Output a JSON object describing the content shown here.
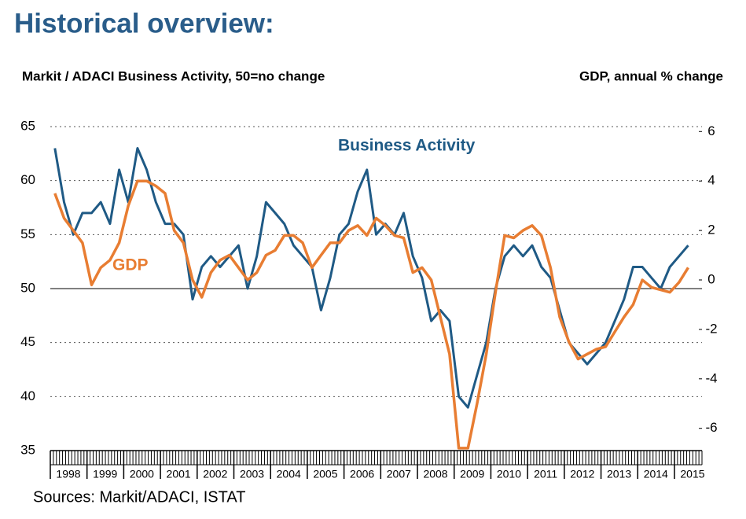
{
  "chart_data": {
    "type": "line",
    "title": "Historical overview:",
    "y_label": "Markit / ADACI  Business Activity, 50=no change",
    "y2_label": "GDP, annual % change",
    "source": "Sources: Markit/ADACI, ISTAT",
    "x": [
      1998.125,
      1998.375,
      1998.625,
      1998.875,
      1999.125,
      1999.375,
      1999.625,
      1999.875,
      2000.125,
      2000.375,
      2000.625,
      2000.875,
      2001.125,
      2001.375,
      2001.625,
      2001.875,
      2002.125,
      2002.375,
      2002.625,
      2002.875,
      2003.125,
      2003.375,
      2003.625,
      2003.875,
      2004.125,
      2004.375,
      2004.625,
      2004.875,
      2005.125,
      2005.375,
      2005.625,
      2005.875,
      2006.125,
      2006.375,
      2006.625,
      2006.875,
      2007.125,
      2007.375,
      2007.625,
      2007.875,
      2008.125,
      2008.375,
      2008.625,
      2008.875,
      2009.125,
      2009.375,
      2009.625,
      2009.875,
      2010.125,
      2010.375,
      2010.625,
      2010.875,
      2011.125,
      2011.375,
      2011.625,
      2011.875,
      2012.125,
      2012.375,
      2012.625,
      2012.875,
      2013.125,
      2013.375,
      2013.625,
      2013.875,
      2014.125,
      2014.375,
      2014.625,
      2014.875,
      2015.125,
      2015.375
    ],
    "xlim": [
      1998,
      2015.75
    ],
    "xticks": [
      1998,
      1999,
      2000,
      2001,
      2002,
      2003,
      2004,
      2005,
      2006,
      2007,
      2008,
      2009,
      2010,
      2011,
      2012,
      2013,
      2014,
      2015
    ],
    "ylim": [
      35,
      65
    ],
    "yticks": [
      35,
      40,
      45,
      50,
      55,
      60,
      65
    ],
    "y2lim": [
      -6.9,
      6.2
    ],
    "y2ticks": [
      -6,
      -4,
      -2,
      0,
      2,
      4,
      6
    ],
    "reference_line": 50,
    "series": [
      {
        "name": "Business Activity",
        "color": "#1f5a85",
        "axis": "y",
        "values": [
          63,
          58,
          55,
          57,
          57,
          58,
          56,
          61,
          58,
          63,
          61,
          58,
          56,
          56,
          55,
          49,
          52,
          53,
          52,
          53,
          54,
          50,
          53,
          58,
          57,
          56,
          54,
          53,
          52,
          48,
          51,
          55,
          56,
          59,
          61,
          55,
          56,
          55,
          57,
          53,
          51,
          47,
          48,
          47,
          40,
          39,
          42,
          45,
          50,
          53,
          54,
          53,
          54,
          52,
          51,
          48,
          45,
          44,
          43,
          44,
          45,
          47,
          49,
          52,
          52,
          51,
          50,
          52,
          53,
          54
        ]
      },
      {
        "name": "GDP",
        "color": "#e87d32",
        "axis": "y2",
        "values": [
          3.5,
          2.5,
          2,
          1.5,
          -0.2,
          0.5,
          0.8,
          1.5,
          3,
          4,
          4,
          3.8,
          3.5,
          2,
          1.5,
          0,
          -0.7,
          0.3,
          0.8,
          1,
          0.5,
          0,
          0.3,
          1,
          1.2,
          1.8,
          1.8,
          1.5,
          0.5,
          1,
          1.5,
          1.5,
          2,
          2.2,
          1.8,
          2.5,
          2.2,
          1.8,
          1.7,
          0.3,
          0.5,
          0,
          -1.5,
          -3,
          -6.8,
          -6.8,
          -5,
          -3,
          -0.5,
          1.8,
          1.7,
          2,
          2.2,
          1.8,
          0.5,
          -1.5,
          -2.5,
          -3.2,
          -3,
          -2.8,
          -2.7,
          -2.1,
          -1.5,
          -1,
          0,
          -0.3,
          -0.4,
          -0.5,
          -0.1,
          0.5
        ]
      }
    ]
  }
}
